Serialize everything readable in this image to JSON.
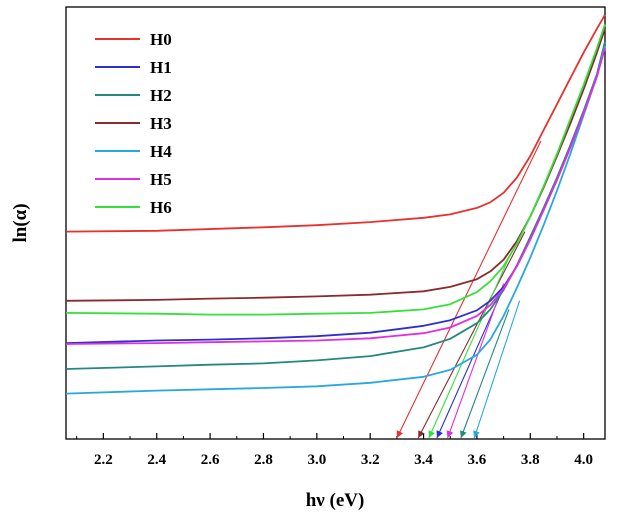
{
  "chart_data": {
    "type": "line",
    "title": "",
    "xlabel": "hν (eV)",
    "ylabel": "ln(α)",
    "xlim": [
      2.06,
      4.08
    ],
    "ylim": [
      0,
      10
    ],
    "xticks": [
      2.2,
      2.4,
      2.6,
      2.8,
      3.0,
      3.2,
      3.4,
      3.6,
      3.8,
      4.0
    ],
    "xtick_labels": [
      "2.2",
      "2.4",
      "2.6",
      "2.8",
      "3.0",
      "3.2",
      "3.4",
      "3.6",
      "3.8",
      "4.0"
    ],
    "yticks_shown": false,
    "legend_position": "top-left",
    "series": [
      {
        "name": "H0",
        "color": "#e8302f",
        "x": [
          2.06,
          2.4,
          2.8,
          3.0,
          3.2,
          3.4,
          3.5,
          3.6,
          3.65,
          3.7,
          3.75,
          3.8,
          3.85,
          3.9,
          3.95,
          4.0,
          4.05,
          4.08
        ],
        "y": [
          4.8,
          4.82,
          4.9,
          4.95,
          5.02,
          5.12,
          5.2,
          5.35,
          5.48,
          5.7,
          6.05,
          6.55,
          7.15,
          7.75,
          8.35,
          8.95,
          9.5,
          9.82
        ],
        "tangent": {
          "x": [
            3.84,
            3.3
          ],
          "y": [
            6.9,
            0.0
          ]
        },
        "bandgap_eV": 3.3
      },
      {
        "name": "H1",
        "color": "#2b2fd0",
        "x": [
          2.06,
          2.4,
          2.6,
          2.8,
          3.0,
          3.2,
          3.4,
          3.5,
          3.6,
          3.65,
          3.7,
          3.75,
          3.8,
          3.85,
          3.9,
          3.95,
          4.0,
          4.05,
          4.08
        ],
        "y": [
          2.22,
          2.28,
          2.3,
          2.33,
          2.38,
          2.46,
          2.62,
          2.75,
          2.98,
          3.2,
          3.52,
          4.0,
          4.62,
          5.3,
          6.0,
          6.75,
          7.55,
          8.4,
          9.15
        ],
        "tangent": {
          "x": [
            3.7,
            3.45
          ],
          "y": [
            3.5,
            0.0
          ]
        },
        "bandgap_eV": 3.45
      },
      {
        "name": "H2",
        "color": "#24887e",
        "x": [
          2.06,
          2.4,
          2.6,
          2.8,
          3.0,
          3.2,
          3.4,
          3.5,
          3.6,
          3.65,
          3.7,
          3.75,
          3.8,
          3.85,
          3.9,
          3.95,
          4.0,
          4.05,
          4.08
        ],
        "y": [
          1.62,
          1.68,
          1.72,
          1.75,
          1.82,
          1.92,
          2.12,
          2.32,
          2.68,
          3.0,
          3.45,
          4.02,
          4.68,
          5.35,
          6.05,
          6.8,
          7.6,
          8.45,
          9.2
        ],
        "tangent": {
          "x": [
            3.72,
            3.54
          ],
          "y": [
            3.0,
            0.0
          ]
        },
        "bandgap_eV": 3.54
      },
      {
        "name": "H3",
        "color": "#8b2a2c",
        "x": [
          2.06,
          2.4,
          2.6,
          2.8,
          3.0,
          3.2,
          3.4,
          3.5,
          3.6,
          3.65,
          3.7,
          3.75,
          3.8,
          3.85,
          3.9,
          3.95,
          4.0,
          4.05,
          4.08
        ],
        "y": [
          3.2,
          3.22,
          3.25,
          3.27,
          3.3,
          3.34,
          3.42,
          3.52,
          3.7,
          3.88,
          4.15,
          4.58,
          5.15,
          5.82,
          6.55,
          7.3,
          8.1,
          8.95,
          9.5
        ],
        "tangent": {
          "x": [
            3.78,
            3.38
          ],
          "y": [
            4.8,
            0.0
          ]
        },
        "bandgap_eV": 3.38
      },
      {
        "name": "H4",
        "color": "#27a9df",
        "x": [
          2.06,
          2.4,
          2.6,
          2.8,
          3.0,
          3.2,
          3.4,
          3.5,
          3.6,
          3.65,
          3.7,
          3.75,
          3.8,
          3.85,
          3.9,
          3.95,
          4.0,
          4.05,
          4.08
        ],
        "y": [
          1.05,
          1.12,
          1.15,
          1.18,
          1.22,
          1.3,
          1.44,
          1.6,
          1.95,
          2.3,
          2.85,
          3.5,
          4.2,
          4.95,
          5.75,
          6.6,
          7.5,
          8.4,
          9.1
        ],
        "tangent": {
          "x": [
            3.76,
            3.59
          ],
          "y": [
            3.2,
            0.0
          ]
        },
        "bandgap_eV": 3.59
      },
      {
        "name": "H5",
        "color": "#e02ee0",
        "x": [
          2.06,
          2.4,
          2.6,
          2.8,
          3.0,
          3.2,
          3.4,
          3.5,
          3.6,
          3.65,
          3.7,
          3.75,
          3.8,
          3.85,
          3.9,
          3.95,
          4.0,
          4.05,
          4.08
        ],
        "y": [
          2.2,
          2.22,
          2.24,
          2.26,
          2.28,
          2.33,
          2.45,
          2.58,
          2.85,
          3.1,
          3.48,
          4.0,
          4.62,
          5.3,
          6.0,
          6.75,
          7.55,
          8.4,
          9.05
        ],
        "tangent": {
          "x": [
            3.7,
            3.49
          ],
          "y": [
            3.6,
            0.0
          ]
        },
        "bandgap_eV": 3.49
      },
      {
        "name": "H6",
        "color": "#35e03c",
        "x": [
          2.06,
          2.4,
          2.6,
          2.8,
          3.0,
          3.2,
          3.4,
          3.5,
          3.6,
          3.65,
          3.7,
          3.75,
          3.8,
          3.85,
          3.9,
          3.95,
          4.0,
          4.05,
          4.08
        ],
        "y": [
          2.92,
          2.9,
          2.88,
          2.88,
          2.9,
          2.92,
          3.0,
          3.12,
          3.4,
          3.65,
          4.0,
          4.52,
          5.15,
          5.85,
          6.6,
          7.4,
          8.2,
          9.05,
          9.6
        ],
        "tangent": {
          "x": [
            3.72,
            3.42
          ],
          "y": [
            4.2,
            0.0
          ]
        },
        "bandgap_eV": 3.42
      }
    ]
  }
}
